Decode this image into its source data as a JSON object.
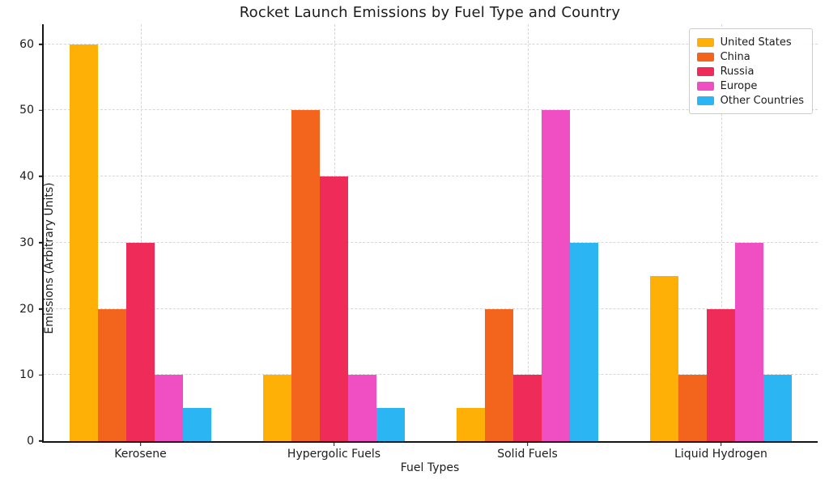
{
  "title": "Rocket Launch Emissions by Fuel Type and Country",
  "chart_data": {
    "type": "bar",
    "title": "Rocket Launch Emissions by Fuel Type and Country",
    "xlabel": "Fuel Types",
    "ylabel": "Emissions (Arbitrary Units)",
    "categories": [
      "Kerosene",
      "Hypergolic Fuels",
      "Solid Fuels",
      "Liquid Hydrogen"
    ],
    "series": [
      {
        "name": "United States",
        "color": "#FFB006",
        "values": [
          60,
          10,
          5,
          25
        ]
      },
      {
        "name": "China",
        "color": "#F3641D",
        "values": [
          20,
          50,
          20,
          10
        ]
      },
      {
        "name": "Russia",
        "color": "#EE2B59",
        "values": [
          30,
          40,
          10,
          20
        ]
      },
      {
        "name": "Europe",
        "color": "#F04FC4",
        "values": [
          10,
          10,
          50,
          30
        ]
      },
      {
        "name": "Other Countries",
        "color": "#2BB5F3",
        "values": [
          5,
          5,
          30,
          10
        ]
      }
    ],
    "yticks": [
      0,
      10,
      20,
      30,
      40,
      50,
      60
    ],
    "ylim": [
      0,
      63
    ],
    "grid": true,
    "grid_style": "dashed",
    "legend_position": "upper right",
    "colors": {
      "grid": "#d6d6d6",
      "axis": "#141414",
      "background": "#ffffff"
    }
  }
}
